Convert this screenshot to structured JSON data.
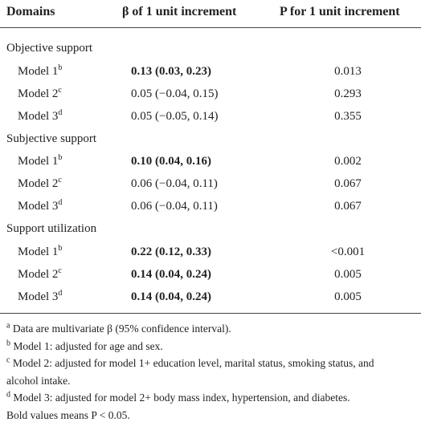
{
  "table": {
    "header": [
      "Domains",
      "β of 1 unit increment",
      "P for 1 unit increment"
    ],
    "groups": [
      {
        "label": "Objective support",
        "rows": [
          {
            "model": "Model 1",
            "sup": "b",
            "beta": "0.13 (0.03, 0.23)",
            "bold": true,
            "p": "0.013"
          },
          {
            "model": "Model 2",
            "sup": "c",
            "beta": "0.05 (−0.04, 0.15)",
            "bold": false,
            "p": "0.293"
          },
          {
            "model": "Model 3",
            "sup": "d",
            "beta": "0.05 (−0.05, 0.14)",
            "bold": false,
            "p": "0.355"
          }
        ]
      },
      {
        "label": "Subjective support",
        "rows": [
          {
            "model": "Model 1",
            "sup": "b",
            "beta": "0.10 (0.04, 0.16)",
            "bold": true,
            "p": "0.002"
          },
          {
            "model": "Model 2",
            "sup": "c",
            "beta": "0.06 (−0.04, 0.11)",
            "bold": false,
            "p": "0.067"
          },
          {
            "model": "Model 3",
            "sup": "d",
            "beta": "0.06 (−0.04, 0.11)",
            "bold": false,
            "p": "0.067"
          }
        ]
      },
      {
        "label": "Support utilization",
        "rows": [
          {
            "model": "Model 1",
            "sup": "b",
            "beta": "0.22 (0.12, 0.33)",
            "bold": true,
            "p": "<0.001"
          },
          {
            "model": "Model 2",
            "sup": "c",
            "beta": "0.14 (0.04, 0.24)",
            "bold": true,
            "p": "0.005"
          },
          {
            "model": "Model 3",
            "sup": "d",
            "beta": "0.14 (0.04, 0.24)",
            "bold": true,
            "p": "0.005"
          }
        ]
      }
    ],
    "footnotes": [
      {
        "mark": "a",
        "lines": [
          "Data are multivariate β (95% confidence interval)."
        ]
      },
      {
        "mark": "b",
        "lines": [
          "Model 1: adjusted for age and sex."
        ]
      },
      {
        "mark": "c",
        "lines": [
          "Model 2: adjusted for model 1+ education level, marital status, smoking status, and",
          "alcohol intake."
        ]
      },
      {
        "mark": "d",
        "lines": [
          "Model 3: adjusted for model 2+ body mass index, hypertension, and diabetes."
        ]
      },
      {
        "mark": null,
        "lines": [
          "Bold values means P < 0.05."
        ]
      }
    ]
  }
}
